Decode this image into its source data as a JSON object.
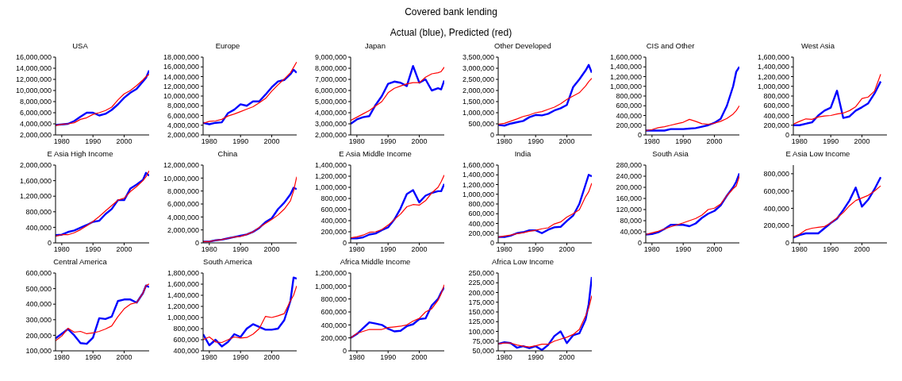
{
  "chart_data": [
    {
      "type": "line",
      "title": "USA",
      "annotations": [
        "Covered bank lending",
        "Actual (blue), Predicted (red)"
      ],
      "x": [
        1978,
        1980,
        1982,
        1984,
        1986,
        1988,
        1990,
        1992,
        1994,
        1996,
        1998,
        2000,
        2002,
        2004,
        2006,
        2007,
        2008
      ],
      "xlim": [
        1978,
        2008
      ],
      "xticks": [
        1980,
        1990,
        2000
      ],
      "ylim": [
        2000000,
        16000000
      ],
      "yticks": [
        {
          "value": 2000000,
          "label": "2,000,000"
        },
        {
          "value": 4000000,
          "label": "4,000,000"
        },
        {
          "value": 6000000,
          "label": "6,000,000"
        },
        {
          "value": 8000000,
          "label": "8,000,000"
        },
        {
          "value": 10000000,
          "label": "10,000,000"
        },
        {
          "value": 12000000,
          "label": "12,000,000"
        },
        {
          "value": 14000000,
          "label": "14,000,000"
        },
        {
          "value": 16000000,
          "label": "16,000,000"
        }
      ],
      "series": [
        {
          "color": "#0000ff",
          "values": [
            3800000,
            3900000,
            4000000,
            4500000,
            5300000,
            6000000,
            6000000,
            5500000,
            5800000,
            6500000,
            7500000,
            8700000,
            9600000,
            10300000,
            11600000,
            12300000,
            13600000
          ]
        },
        {
          "color": "#ff0000",
          "values": [
            3700000,
            3900000,
            4000000,
            4200000,
            4800000,
            5100000,
            5700000,
            6000000,
            6400000,
            7000000,
            8300000,
            9400000,
            10000000,
            10900000,
            11900000,
            12500000,
            12900000
          ]
        }
      ]
    },
    {
      "type": "line",
      "title": "Europe",
      "x": [
        1978,
        1980,
        1982,
        1984,
        1986,
        1988,
        1990,
        1992,
        1994,
        1996,
        1998,
        2000,
        2002,
        2004,
        2006,
        2007,
        2008
      ],
      "xlim": [
        1978,
        2008
      ],
      "xticks": [
        1980,
        1990,
        2000
      ],
      "ylim": [
        2000000,
        18000000
      ],
      "yticks": [
        {
          "value": 2000000,
          "label": "2,000,000"
        },
        {
          "value": 4000000,
          "label": "4,000,000"
        },
        {
          "value": 6000000,
          "label": "6,000,000"
        },
        {
          "value": 8000000,
          "label": "8,000,000"
        },
        {
          "value": 10000000,
          "label": "10,000,000"
        },
        {
          "value": 12000000,
          "label": "12,000,000"
        },
        {
          "value": 14000000,
          "label": "14,000,000"
        },
        {
          "value": 16000000,
          "label": "16,000,000"
        },
        {
          "value": 18000000,
          "label": "18,000,000"
        }
      ],
      "series": [
        {
          "color": "#0000ff",
          "values": [
            4500000,
            4200000,
            4500000,
            4600000,
            6500000,
            7200000,
            8300000,
            8000000,
            8900000,
            8900000,
            10300000,
            11800000,
            13000000,
            13300000,
            14500000,
            15400000,
            14800000
          ]
        },
        {
          "color": "#ff0000",
          "values": [
            4400000,
            4800000,
            4900000,
            5200000,
            5900000,
            6300000,
            6800000,
            7300000,
            7800000,
            8600000,
            9500000,
            11000000,
            12300000,
            13500000,
            14800000,
            15900000,
            17000000
          ]
        }
      ]
    },
    {
      "type": "line",
      "title": "Japan",
      "x": [
        1978,
        1980,
        1982,
        1984,
        1986,
        1988,
        1990,
        1992,
        1994,
        1996,
        1998,
        2000,
        2002,
        2004,
        2006,
        2007,
        2008
      ],
      "xlim": [
        1978,
        2008
      ],
      "xticks": [
        1980,
        1990,
        2000
      ],
      "ylim": [
        2000000,
        9000000
      ],
      "yticks": [
        {
          "value": 2000000,
          "label": "2,000,000"
        },
        {
          "value": 3000000,
          "label": "3,000,000"
        },
        {
          "value": 4000000,
          "label": "4,000,000"
        },
        {
          "value": 5000000,
          "label": "5,000,000"
        },
        {
          "value": 6000000,
          "label": "6,000,000"
        },
        {
          "value": 7000000,
          "label": "7,000,000"
        },
        {
          "value": 8000000,
          "label": "8,000,000"
        },
        {
          "value": 9000000,
          "label": "9,000,000"
        }
      ],
      "series": [
        {
          "color": "#0000ff",
          "values": [
            3000000,
            3400000,
            3600000,
            3700000,
            4700000,
            5500000,
            6600000,
            6800000,
            6700000,
            6400000,
            8200000,
            6700000,
            7000000,
            6000000,
            6200000,
            6100000,
            6900000
          ]
        },
        {
          "color": "#ff0000",
          "values": [
            3300000,
            3600000,
            3900000,
            4200000,
            4600000,
            5000000,
            5800000,
            6200000,
            6400000,
            6600000,
            6700000,
            6700000,
            7200000,
            7500000,
            7600000,
            7700000,
            8100000
          ]
        }
      ]
    },
    {
      "type": "line",
      "title": "Other Developed",
      "x": [
        1978,
        1980,
        1982,
        1984,
        1986,
        1988,
        1990,
        1992,
        1994,
        1996,
        1998,
        2000,
        2002,
        2004,
        2006,
        2007,
        2008
      ],
      "xlim": [
        1978,
        2008
      ],
      "xticks": [
        1980,
        1990,
        2000
      ],
      "ylim": [
        0,
        3500000
      ],
      "yticks": [
        {
          "value": 0,
          "label": "0"
        },
        {
          "value": 500000,
          "label": "500,000"
        },
        {
          "value": 1000000,
          "label": "1,000,000"
        },
        {
          "value": 1500000,
          "label": "1,500,000"
        },
        {
          "value": 2000000,
          "label": "2,000,000"
        },
        {
          "value": 2500000,
          "label": "2,500,000"
        },
        {
          "value": 3000000,
          "label": "3,000,000"
        },
        {
          "value": 3500000,
          "label": "3,500,000"
        }
      ],
      "series": [
        {
          "color": "#0000ff",
          "values": [
            450000,
            420000,
            510000,
            570000,
            630000,
            800000,
            900000,
            880000,
            950000,
            1100000,
            1200000,
            1350000,
            2150000,
            2500000,
            2900000,
            3150000,
            2800000
          ]
        },
        {
          "color": "#ff0000",
          "values": [
            480000,
            520000,
            620000,
            720000,
            830000,
            900000,
            1000000,
            1050000,
            1150000,
            1250000,
            1400000,
            1600000,
            1750000,
            1900000,
            2200000,
            2400000,
            2550000
          ]
        }
      ]
    },
    {
      "type": "line",
      "title": "CIS and Other",
      "x": [
        1978,
        1980,
        1982,
        1984,
        1986,
        1988,
        1990,
        1992,
        1994,
        1996,
        1998,
        2000,
        2002,
        2004,
        2006,
        2007,
        2008
      ],
      "xlim": [
        1978,
        2008
      ],
      "xticks": [
        1980,
        1990,
        2000
      ],
      "ylim": [
        0,
        1600000
      ],
      "yticks": [
        {
          "value": 0,
          "label": "0"
        },
        {
          "value": 200000,
          "label": "200,000"
        },
        {
          "value": 400000,
          "label": "400,000"
        },
        {
          "value": 600000,
          "label": "600,000"
        },
        {
          "value": 800000,
          "label": "800,000"
        },
        {
          "value": 1000000,
          "label": "1,000,000"
        },
        {
          "value": 1200000,
          "label": "1,200,000"
        },
        {
          "value": 1400000,
          "label": "1,400,000"
        },
        {
          "value": 1600000,
          "label": "1,600,000"
        }
      ],
      "series": [
        {
          "color": "#0000ff",
          "values": [
            90000,
            90000,
            90000,
            90000,
            120000,
            120000,
            120000,
            130000,
            140000,
            170000,
            200000,
            250000,
            330000,
            600000,
            1000000,
            1300000,
            1400000
          ]
        },
        {
          "color": "#ff0000",
          "values": [
            90000,
            110000,
            150000,
            170000,
            200000,
            230000,
            260000,
            320000,
            280000,
            230000,
            220000,
            240000,
            280000,
            340000,
            430000,
            500000,
            600000
          ]
        }
      ]
    },
    {
      "type": "line",
      "title": "West Asia",
      "x": [
        1978,
        1980,
        1982,
        1984,
        1986,
        1988,
        1990,
        1992,
        1994,
        1996,
        1998,
        2000,
        2002,
        2004,
        2006
      ],
      "xlim": [
        1978,
        2008
      ],
      "xticks": [
        1980,
        1990,
        2000
      ],
      "ylim": [
        0,
        1600000
      ],
      "yticks": [
        {
          "value": 0,
          "label": "0"
        },
        {
          "value": 200000,
          "label": "200,000"
        },
        {
          "value": 400000,
          "label": "400,000"
        },
        {
          "value": 600000,
          "label": "600,000"
        },
        {
          "value": 800000,
          "label": "800,000"
        },
        {
          "value": 1000000,
          "label": "1,000,000"
        },
        {
          "value": 1200000,
          "label": "1,200,000"
        },
        {
          "value": 1400000,
          "label": "1,400,000"
        },
        {
          "value": 1600000,
          "label": "1,600,000"
        }
      ],
      "series": [
        {
          "color": "#0000ff",
          "values": [
            200000,
            200000,
            230000,
            260000,
            400000,
            500000,
            560000,
            910000,
            350000,
            380000,
            500000,
            570000,
            650000,
            850000,
            1100000
          ]
        },
        {
          "color": "#ff0000",
          "values": [
            220000,
            280000,
            330000,
            320000,
            370000,
            390000,
            400000,
            430000,
            450000,
            500000,
            580000,
            750000,
            780000,
            900000,
            1250000
          ]
        }
      ]
    },
    {
      "type": "line",
      "title": "E Asia High Income",
      "x": [
        1978,
        1980,
        1982,
        1984,
        1986,
        1988,
        1990,
        1992,
        1994,
        1996,
        1998,
        2000,
        2002,
        2004,
        2006,
        2007,
        2008
      ],
      "xlim": [
        1978,
        2008
      ],
      "xticks": [
        1980,
        1990,
        2000
      ],
      "ylim": [
        0,
        2000000
      ],
      "yticks": [
        {
          "value": 0,
          "label": "0"
        },
        {
          "value": 400000,
          "label": "400,000"
        },
        {
          "value": 800000,
          "label": "800,000"
        },
        {
          "value": 1200000,
          "label": "1,200,000"
        },
        {
          "value": 1600000,
          "label": "1,600,000"
        },
        {
          "value": 2000000,
          "label": "2,000,000"
        }
      ],
      "series": [
        {
          "color": "#0000ff",
          "values": [
            200000,
            210000,
            280000,
            320000,
            390000,
            460000,
            540000,
            570000,
            740000,
            870000,
            1100000,
            1100000,
            1400000,
            1500000,
            1620000,
            1800000,
            1730000
          ]
        },
        {
          "color": "#ff0000",
          "values": [
            170000,
            210000,
            210000,
            260000,
            340000,
            440000,
            550000,
            680000,
            820000,
            960000,
            1100000,
            1150000,
            1320000,
            1450000,
            1600000,
            1700000,
            1850000
          ]
        }
      ]
    },
    {
      "type": "line",
      "title": "China",
      "x": [
        1978,
        1980,
        1982,
        1984,
        1986,
        1988,
        1990,
        1992,
        1994,
        1996,
        1998,
        2000,
        2002,
        2004,
        2006,
        2007,
        2008
      ],
      "xlim": [
        1978,
        2008
      ],
      "xticks": [
        1980,
        1990,
        2000
      ],
      "ylim": [
        0,
        12000000
      ],
      "yticks": [
        {
          "value": 0,
          "label": "0"
        },
        {
          "value": 2000000,
          "label": "2,000,000"
        },
        {
          "value": 4000000,
          "label": "4,000,000"
        },
        {
          "value": 6000000,
          "label": "6,000,000"
        },
        {
          "value": 8000000,
          "label": "8,000,000"
        },
        {
          "value": 10000000,
          "label": "10,000,000"
        },
        {
          "value": 12000000,
          "label": "12,000,000"
        }
      ],
      "series": [
        {
          "color": "#0000ff",
          "values": [
            200000,
            200000,
            400000,
            500000,
            700000,
            900000,
            1100000,
            1300000,
            1700000,
            2300000,
            3200000,
            3800000,
            5200000,
            6200000,
            7500000,
            8500000,
            8300000
          ]
        },
        {
          "color": "#ff0000",
          "values": [
            200000,
            200000,
            400000,
            500000,
            700000,
            900000,
            1000000,
            1300000,
            1700000,
            2400000,
            3000000,
            3600000,
            4300000,
            5200000,
            6500000,
            8000000,
            10200000
          ]
        }
      ]
    },
    {
      "type": "line",
      "title": "E Asia Middle Income",
      "x": [
        1978,
        1980,
        1982,
        1984,
        1986,
        1988,
        1990,
        1992,
        1994,
        1996,
        1998,
        2000,
        2002,
        2004,
        2006,
        2007,
        2008
      ],
      "xlim": [
        1978,
        2008
      ],
      "xticks": [
        1980,
        1990,
        2000
      ],
      "ylim": [
        0,
        1400000
      ],
      "yticks": [
        {
          "value": 0,
          "label": "0"
        },
        {
          "value": 200000,
          "label": "200,000"
        },
        {
          "value": 400000,
          "label": "400,000"
        },
        {
          "value": 600000,
          "label": "600,000"
        },
        {
          "value": 800000,
          "label": "800,000"
        },
        {
          "value": 1000000,
          "label": "1,000,000"
        },
        {
          "value": 1200000,
          "label": "1,200,000"
        },
        {
          "value": 1400000,
          "label": "1,400,000"
        }
      ],
      "series": [
        {
          "color": "#0000ff",
          "values": [
            80000,
            80000,
            100000,
            150000,
            170000,
            230000,
            280000,
            420000,
            620000,
            880000,
            950000,
            730000,
            850000,
            900000,
            930000,
            930000,
            1060000
          ]
        },
        {
          "color": "#ff0000",
          "values": [
            90000,
            110000,
            140000,
            190000,
            200000,
            240000,
            320000,
            420000,
            520000,
            650000,
            690000,
            680000,
            760000,
            900000,
            1000000,
            1100000,
            1220000
          ]
        }
      ]
    },
    {
      "type": "line",
      "title": "India",
      "x": [
        1978,
        1980,
        1982,
        1984,
        1986,
        1988,
        1990,
        1992,
        1994,
        1996,
        1998,
        2000,
        2002,
        2004,
        2006,
        2007,
        2008
      ],
      "xlim": [
        1978,
        2008
      ],
      "xticks": [
        1980,
        1990,
        2000
      ],
      "ylim": [
        0,
        1600000
      ],
      "yticks": [
        {
          "value": 0,
          "label": "0"
        },
        {
          "value": 200000,
          "label": "200,000"
        },
        {
          "value": 400000,
          "label": "400,000"
        },
        {
          "value": 600000,
          "label": "600,000"
        },
        {
          "value": 800000,
          "label": "800,000"
        },
        {
          "value": 1000000,
          "label": "1,000,000"
        },
        {
          "value": 1200000,
          "label": "1,200,000"
        },
        {
          "value": 1400000,
          "label": "1,400,000"
        },
        {
          "value": 1600000,
          "label": "1,600,000"
        }
      ],
      "series": [
        {
          "color": "#0000ff",
          "values": [
            120000,
            120000,
            150000,
            200000,
            220000,
            260000,
            260000,
            200000,
            270000,
            320000,
            330000,
            450000,
            560000,
            800000,
            1200000,
            1400000,
            1370000
          ]
        },
        {
          "color": "#ff0000",
          "values": [
            120000,
            140000,
            160000,
            190000,
            210000,
            240000,
            260000,
            290000,
            310000,
            390000,
            430000,
            530000,
            600000,
            680000,
            950000,
            1050000,
            1230000
          ]
        }
      ]
    },
    {
      "type": "line",
      "title": "South Asia",
      "x": [
        1978,
        1980,
        1982,
        1984,
        1986,
        1988,
        1990,
        1992,
        1994,
        1996,
        1998,
        2000,
        2002,
        2004,
        2006,
        2007,
        2008
      ],
      "xlim": [
        1978,
        2008
      ],
      "xticks": [
        1980,
        1990,
        2000
      ],
      "ylim": [
        0,
        280000
      ],
      "yticks": [
        {
          "value": 0,
          "label": "0"
        },
        {
          "value": 40000,
          "label": "40,000"
        },
        {
          "value": 80000,
          "label": "80,000"
        },
        {
          "value": 120000,
          "label": "120,000"
        },
        {
          "value": 160000,
          "label": "160,000"
        },
        {
          "value": 200000,
          "label": "200,000"
        },
        {
          "value": 240000,
          "label": "240,000"
        },
        {
          "value": 280000,
          "label": "280,000"
        }
      ],
      "series": [
        {
          "color": "#0000ff",
          "values": [
            30000,
            32000,
            38000,
            50000,
            65000,
            65000,
            65000,
            60000,
            70000,
            90000,
            105000,
            115000,
            135000,
            170000,
            200000,
            220000,
            250000
          ]
        },
        {
          "color": "#ff0000",
          "values": [
            30000,
            36000,
            42000,
            50000,
            58000,
            65000,
            72000,
            80000,
            88000,
            100000,
            120000,
            125000,
            140000,
            170000,
            195000,
            205000,
            240000
          ]
        }
      ]
    },
    {
      "type": "line",
      "title": "E Asia Low Income",
      "x": [
        1978,
        1980,
        1982,
        1984,
        1986,
        1988,
        1990,
        1992,
        1994,
        1996,
        1998,
        2000,
        2002,
        2004,
        2006
      ],
      "xlim": [
        1978,
        2008
      ],
      "xticks": [
        1980,
        1990,
        2000
      ],
      "ylim": [
        0,
        900000
      ],
      "yticks": [
        {
          "value": 0,
          "label": "0"
        },
        {
          "value": 200000,
          "label": "200,000"
        },
        {
          "value": 400000,
          "label": "400,000"
        },
        {
          "value": 600000,
          "label": "600,000"
        },
        {
          "value": 800000,
          "label": "800,000"
        }
      ],
      "series": [
        {
          "color": "#0000ff",
          "values": [
            60000,
            90000,
            110000,
            110000,
            110000,
            170000,
            230000,
            280000,
            380000,
            490000,
            640000,
            420000,
            500000,
            620000,
            760000
          ]
        },
        {
          "color": "#ff0000",
          "values": [
            70000,
            100000,
            150000,
            170000,
            180000,
            190000,
            230000,
            290000,
            350000,
            430000,
            490000,
            520000,
            550000,
            600000,
            660000
          ]
        }
      ]
    },
    {
      "type": "line",
      "title": "Central America",
      "x": [
        1978,
        1980,
        1982,
        1984,
        1986,
        1988,
        1990,
        1992,
        1994,
        1996,
        1998,
        2000,
        2002,
        2004,
        2006,
        2007,
        2008
      ],
      "xlim": [
        1978,
        2008
      ],
      "xticks": [
        1980,
        1990,
        2000
      ],
      "ylim": [
        100000,
        600000
      ],
      "yticks": [
        {
          "value": 100000,
          "label": "100,000"
        },
        {
          "value": 200000,
          "label": "200,000"
        },
        {
          "value": 300000,
          "label": "300,000"
        },
        {
          "value": 400000,
          "label": "400,000"
        },
        {
          "value": 500000,
          "label": "500,000"
        },
        {
          "value": 600000,
          "label": "600,000"
        }
      ],
      "series": [
        {
          "color": "#0000ff",
          "values": [
            180000,
            210000,
            240000,
            200000,
            150000,
            145000,
            185000,
            310000,
            305000,
            320000,
            420000,
            430000,
            430000,
            410000,
            470000,
            520000,
            510000
          ]
        },
        {
          "color": "#ff0000",
          "values": [
            165000,
            195000,
            245000,
            220000,
            225000,
            210000,
            215000,
            225000,
            240000,
            260000,
            320000,
            370000,
            400000,
            410000,
            470000,
            520000,
            530000
          ]
        }
      ]
    },
    {
      "type": "line",
      "title": "South America",
      "x": [
        1978,
        1980,
        1982,
        1984,
        1986,
        1988,
        1990,
        1992,
        1994,
        1996,
        1998,
        2000,
        2002,
        2004,
        2006,
        2007,
        2008
      ],
      "xlim": [
        1978,
        2008
      ],
      "xticks": [
        1980,
        1990,
        2000
      ],
      "ylim": [
        400000,
        1800000
      ],
      "yticks": [
        {
          "value": 400000,
          "label": "400,000"
        },
        {
          "value": 600000,
          "label": "600,000"
        },
        {
          "value": 800000,
          "label": "800,000"
        },
        {
          "value": 1000000,
          "label": "1,000,000"
        },
        {
          "value": 1200000,
          "label": "1,200,000"
        },
        {
          "value": 1400000,
          "label": "1,400,000"
        },
        {
          "value": 1600000,
          "label": "1,600,000"
        },
        {
          "value": 1800000,
          "label": "1,800,000"
        }
      ],
      "series": [
        {
          "color": "#0000ff",
          "values": [
            700000,
            500000,
            600000,
            480000,
            560000,
            700000,
            650000,
            800000,
            880000,
            830000,
            780000,
            780000,
            800000,
            950000,
            1300000,
            1720000,
            1700000
          ]
        },
        {
          "color": "#ff0000",
          "values": [
            600000,
            650000,
            560000,
            550000,
            600000,
            650000,
            630000,
            640000,
            700000,
            800000,
            1020000,
            1000000,
            1030000,
            1070000,
            1300000,
            1400000,
            1570000
          ]
        }
      ]
    },
    {
      "type": "line",
      "title": "Africa Middle Income",
      "x": [
        1978,
        1980,
        1982,
        1984,
        1986,
        1988,
        1990,
        1992,
        1994,
        1996,
        1998,
        2000,
        2002,
        2004,
        2006,
        2007,
        2008
      ],
      "xlim": [
        1978,
        2008
      ],
      "xticks": [
        1980,
        1990,
        2000
      ],
      "ylim": [
        0,
        1200000
      ],
      "yticks": [
        {
          "value": 0,
          "label": "0"
        },
        {
          "value": 200000,
          "label": "200,000"
        },
        {
          "value": 400000,
          "label": "400,000"
        },
        {
          "value": 600000,
          "label": "600,000"
        },
        {
          "value": 800000,
          "label": "800,000"
        },
        {
          "value": 1000000,
          "label": "1,000,000"
        },
        {
          "value": 1200000,
          "label": "1,200,000"
        }
      ],
      "series": [
        {
          "color": "#0000ff",
          "values": [
            200000,
            260000,
            350000,
            440000,
            420000,
            400000,
            340000,
            300000,
            310000,
            380000,
            410000,
            490000,
            500000,
            700000,
            800000,
            900000,
            980000
          ]
        },
        {
          "color": "#ff0000",
          "values": [
            200000,
            270000,
            300000,
            330000,
            330000,
            330000,
            360000,
            370000,
            380000,
            400000,
            460000,
            500000,
            600000,
            650000,
            780000,
            880000,
            1020000
          ]
        }
      ]
    },
    {
      "type": "line",
      "title": "Africa Low Income",
      "x": [
        1978,
        1980,
        1982,
        1984,
        1986,
        1988,
        1990,
        1992,
        1994,
        1996,
        1998,
        2000,
        2002,
        2004,
        2006,
        2007,
        2008
      ],
      "xlim": [
        1978,
        2008
      ],
      "xticks": [
        1980,
        1990,
        2000
      ],
      "ylim": [
        50000,
        250000
      ],
      "yticks": [
        {
          "value": 50000,
          "label": "50,000"
        },
        {
          "value": 75000,
          "label": "75,000"
        },
        {
          "value": 100000,
          "label": "100,000"
        },
        {
          "value": 125000,
          "label": "125,000"
        },
        {
          "value": 150000,
          "label": "150,000"
        },
        {
          "value": 175000,
          "label": "175,000"
        },
        {
          "value": 200000,
          "label": "200,000"
        },
        {
          "value": 225000,
          "label": "225,000"
        },
        {
          "value": 250000,
          "label": "250,000"
        }
      ],
      "series": [
        {
          "color": "#0000ff",
          "values": [
            68000,
            72000,
            70000,
            58000,
            62000,
            57000,
            62000,
            52000,
            65000,
            88000,
            100000,
            70000,
            90000,
            95000,
            130000,
            170000,
            240000
          ]
        },
        {
          "color": "#ff0000",
          "values": [
            68000,
            70000,
            70000,
            65000,
            62000,
            60000,
            63000,
            67000,
            67000,
            75000,
            80000,
            85000,
            92000,
            105000,
            140000,
            160000,
            192000
          ]
        }
      ]
    }
  ]
}
